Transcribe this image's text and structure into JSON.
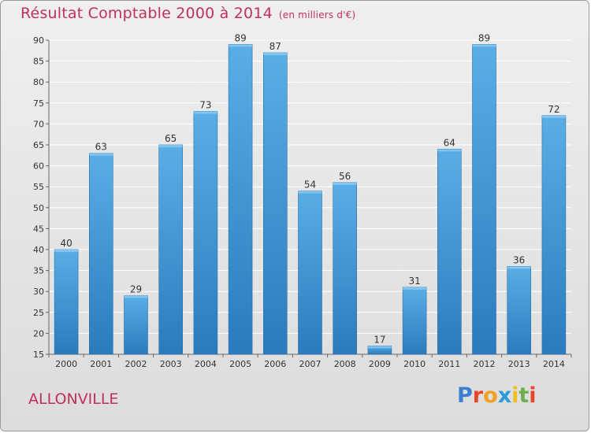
{
  "header": {
    "title": "Résultat Comptable 2000 à 2014",
    "unit": "(en milliers d'€)"
  },
  "footer": {
    "town": "ALLONVILLE",
    "logo_letters": [
      "P",
      "r",
      "o",
      "x",
      "i",
      "t",
      "i"
    ],
    "logo_colors": [
      "#3a7fd0",
      "#e8462c",
      "#f0a020",
      "#2a9ad8",
      "#f0c020",
      "#6ab04c",
      "#e8462c"
    ]
  },
  "colors": {
    "title": "#c0305a",
    "bar_top": "#5aaee6",
    "bar_bottom": "#2a7bbd",
    "grid": "#ffffff"
  },
  "chart_data": {
    "type": "bar",
    "title": "Résultat Comptable 2000 à 2014",
    "categories": [
      "2000",
      "2001",
      "2002",
      "2003",
      "2004",
      "2005",
      "2006",
      "2007",
      "2008",
      "2009",
      "2010",
      "2011",
      "2012",
      "2013",
      "2014"
    ],
    "values": [
      40,
      63,
      29,
      65,
      73,
      89,
      87,
      54,
      56,
      17,
      31,
      64,
      89,
      36,
      72
    ],
    "ylim": [
      15,
      90
    ],
    "yticks": [
      15,
      20,
      25,
      30,
      35,
      40,
      45,
      50,
      55,
      60,
      65,
      70,
      75,
      80,
      85,
      90
    ],
    "grid": true,
    "xlabel": "",
    "ylabel": ""
  }
}
